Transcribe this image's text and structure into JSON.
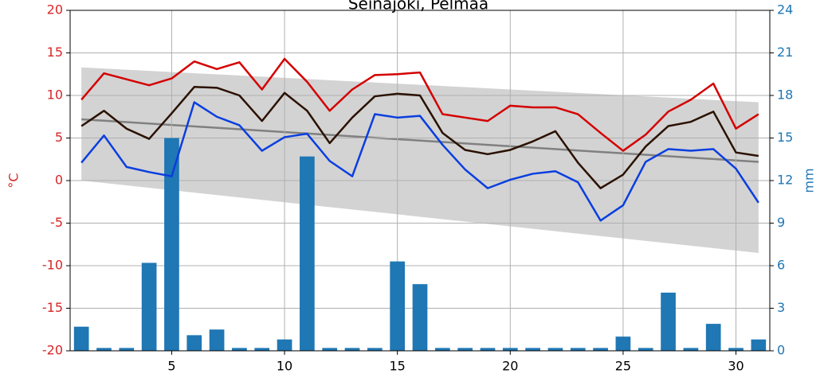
{
  "chart_data": {
    "type": "line",
    "title": "Seinäjoki, Pelmaa",
    "x": [
      1,
      2,
      3,
      4,
      5,
      6,
      7,
      8,
      9,
      10,
      11,
      12,
      13,
      14,
      15,
      16,
      17,
      18,
      19,
      20,
      21,
      22,
      23,
      24,
      25,
      26,
      27,
      28,
      29,
      30,
      31
    ],
    "xlim": [
      0.5,
      31.5
    ],
    "xticks": [
      5,
      10,
      15,
      20,
      25,
      30
    ],
    "ylabel": "°C",
    "ylim": [
      -20,
      20
    ],
    "yticks": [
      -20,
      -15,
      -10,
      -5,
      0,
      5,
      10,
      15,
      20
    ],
    "ycolor": "#d62728",
    "y2label": "mm",
    "y2lim": [
      0,
      24
    ],
    "y2ticks": [
      0,
      3,
      6,
      9,
      12,
      15,
      18,
      21,
      24
    ],
    "y2color": "#1f77b4",
    "grid": true,
    "normal_range": {
      "x": [
        1,
        31
      ],
      "upper": [
        13.3,
        9.2
      ],
      "lower": [
        0,
        -8.5
      ],
      "color": "#d3d3d3"
    },
    "normal_mean": {
      "x": [
        1,
        31
      ],
      "values": [
        7.2,
        2.2
      ],
      "color": "#808080"
    },
    "series": [
      {
        "type": "bar",
        "axis": "y2",
        "color": "#1f77b4",
        "values": [
          1.7,
          0.2,
          0.2,
          6.2,
          15.0,
          1.1,
          1.5,
          0.2,
          0.2,
          0.8,
          13.7,
          0.2,
          0.2,
          0.2,
          6.3,
          4.7,
          0.2,
          0.2,
          0.2,
          0.2,
          0.2,
          0.2,
          0.2,
          0.2,
          1.0,
          0.2,
          4.1,
          0.2,
          1.9,
          0.2,
          0.8
        ]
      },
      {
        "type": "line",
        "color": "#d40000",
        "values": [
          9.5,
          12.6,
          11.9,
          11.2,
          12.0,
          14.0,
          13.1,
          13.9,
          10.7,
          14.3,
          11.6,
          8.2,
          10.7,
          12.4,
          12.5,
          12.7,
          7.8,
          7.4,
          7.0,
          8.8,
          8.6,
          8.6,
          7.8,
          5.6,
          3.5,
          5.4,
          8.1,
          9.5,
          11.4,
          6.1,
          7.8
        ]
      },
      {
        "type": "line",
        "color": "#2b1100",
        "values": [
          6.4,
          8.2,
          6.1,
          4.9,
          7.9,
          11.0,
          10.9,
          10.0,
          7.0,
          10.3,
          8.2,
          4.4,
          7.4,
          9.9,
          10.2,
          10.0,
          5.6,
          3.6,
          3.1,
          3.6,
          4.6,
          5.8,
          2.1,
          -0.9,
          0.7,
          4.0,
          6.4,
          6.9,
          8.1,
          3.3,
          2.9
        ]
      },
      {
        "type": "line",
        "color": "#0a3ee0",
        "values": [
          2.1,
          5.3,
          1.6,
          1.0,
          0.5,
          9.2,
          7.5,
          6.5,
          3.5,
          5.1,
          5.5,
          2.3,
          0.5,
          7.8,
          7.4,
          7.6,
          4.2,
          1.3,
          -0.9,
          0.1,
          0.8,
          1.1,
          -0.2,
          -4.7,
          -2.9,
          2.2,
          3.7,
          3.5,
          3.7,
          1.4,
          -2.6
        ]
      }
    ]
  }
}
